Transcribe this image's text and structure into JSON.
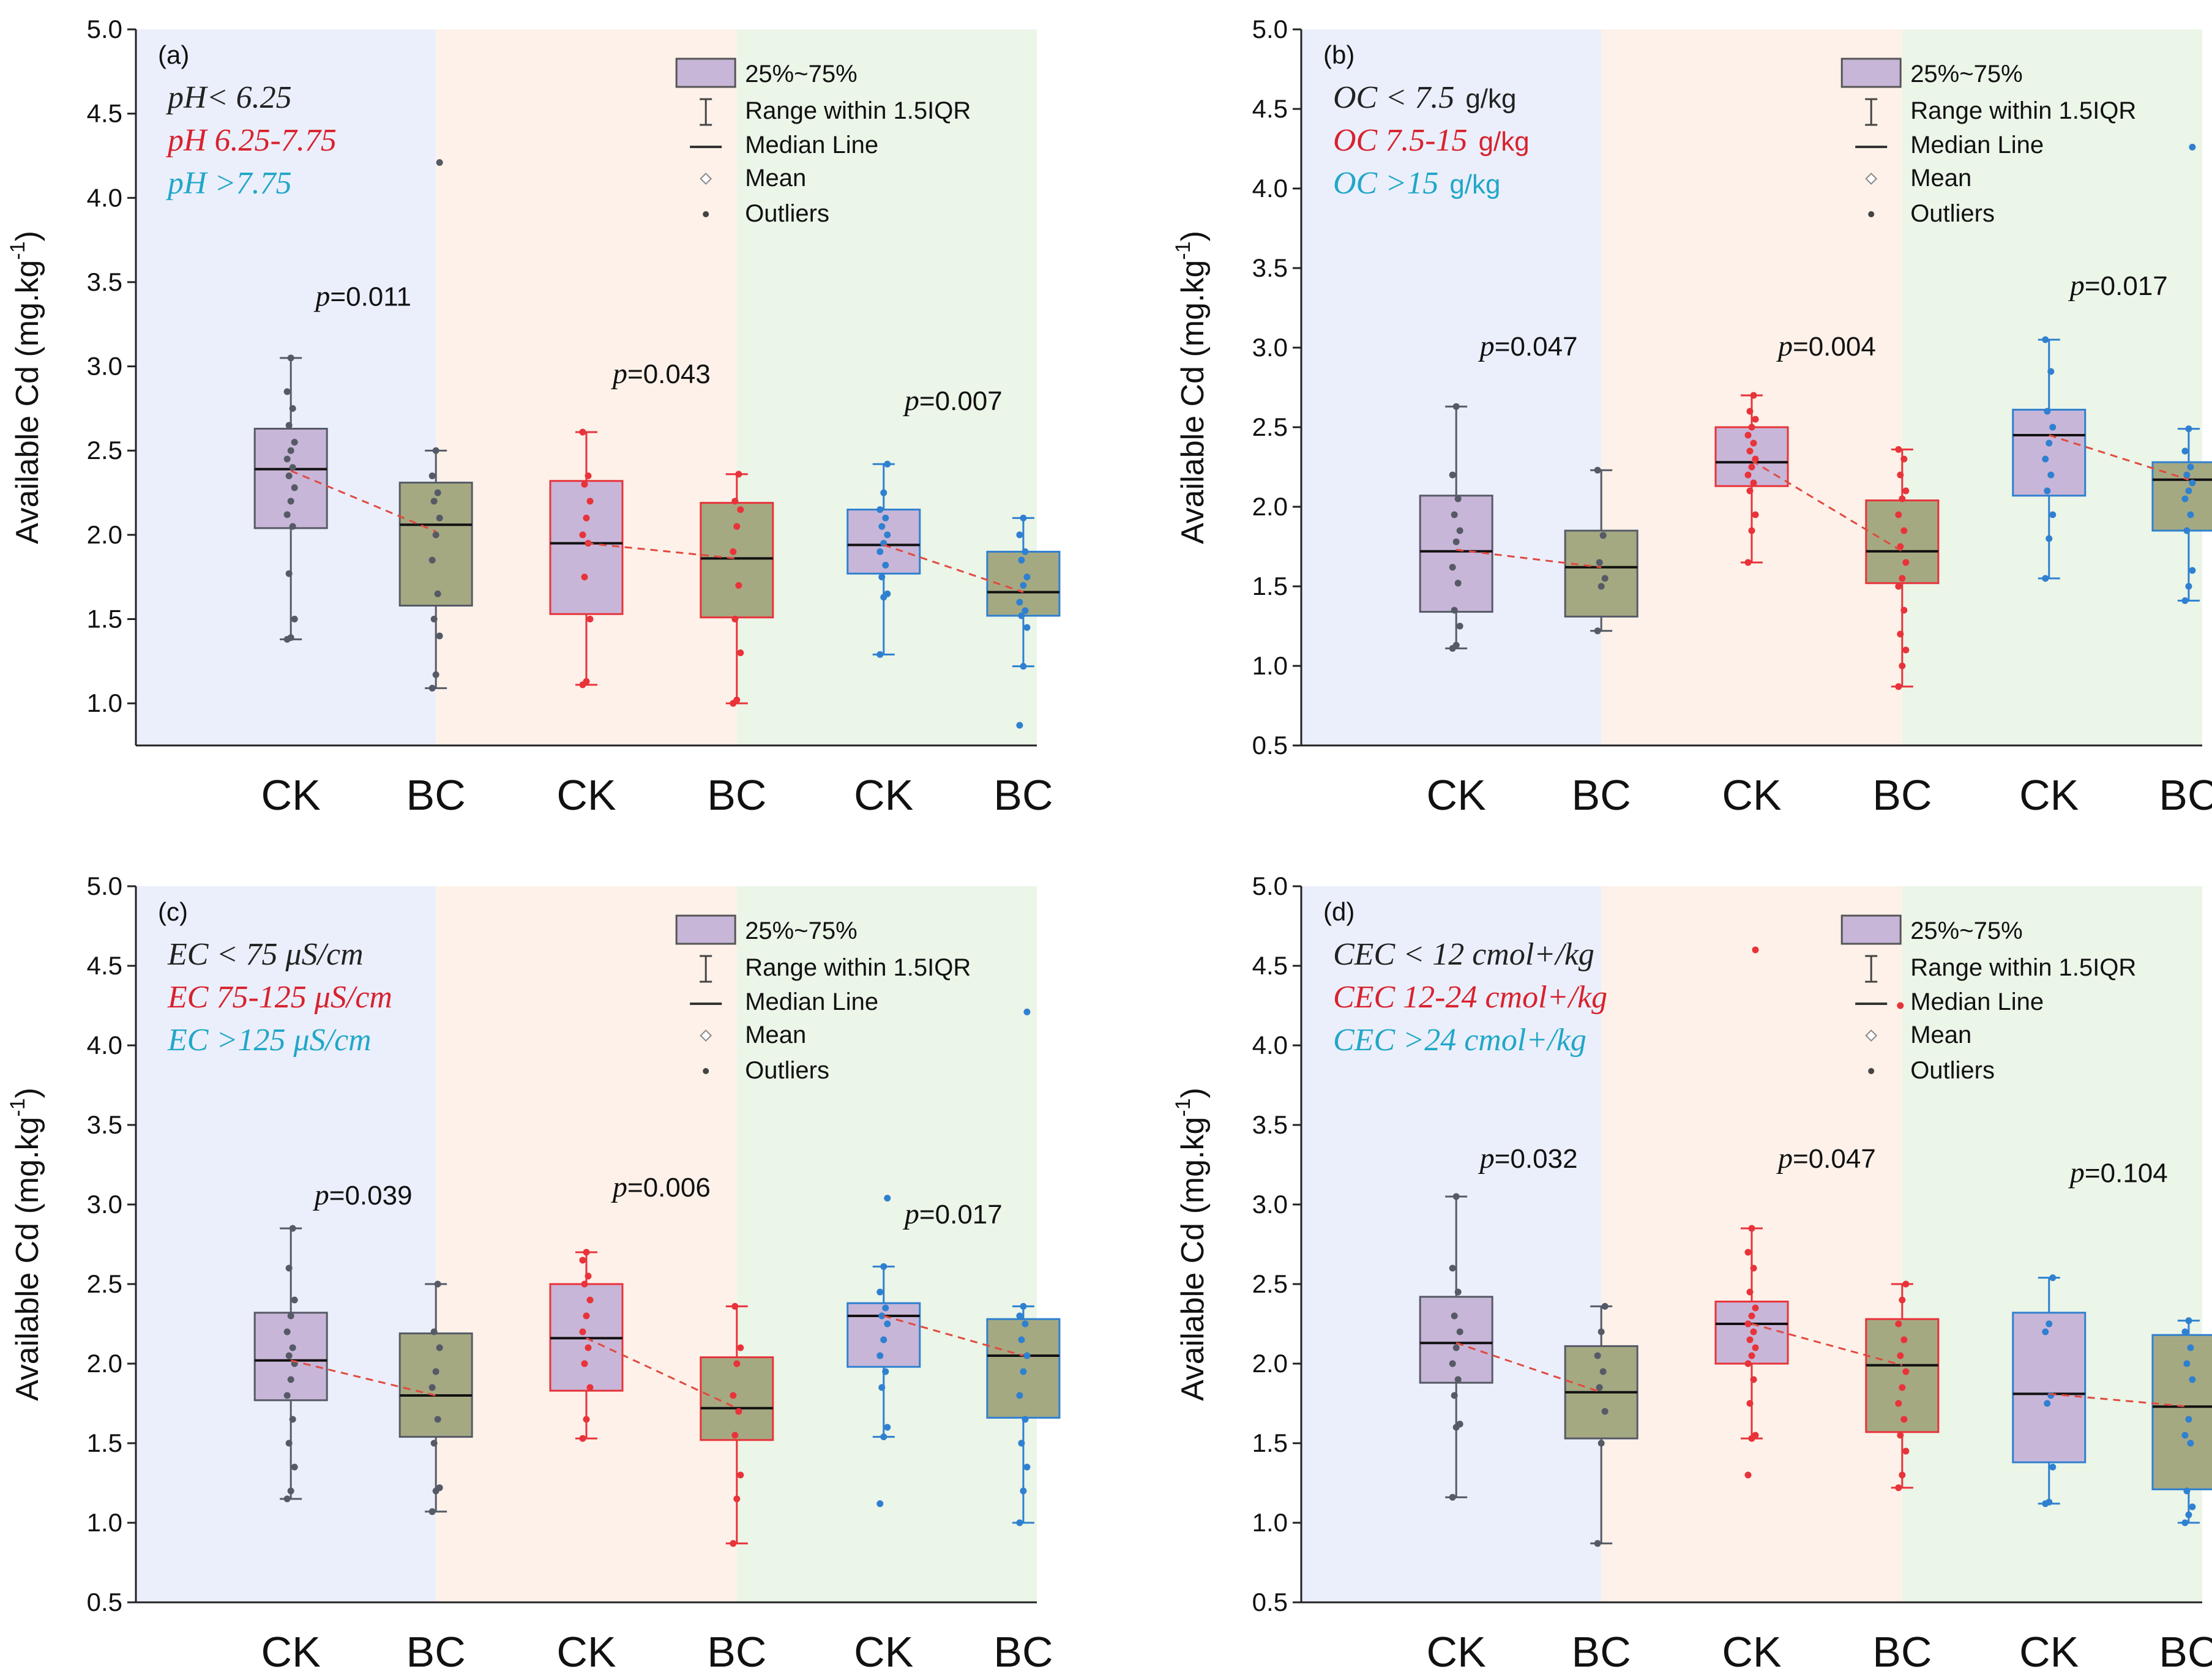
{
  "legend": {
    "box": "25%~75%",
    "range": "Range within 1.5IQR",
    "median": "Median Line",
    "mean": "Mean",
    "outliers": "Outliers"
  },
  "y_label": "Available Cd (mg.kg",
  "y_label_sup": "-1",
  "colors": {
    "group_colors": [
      "#555a66",
      "#e8333a",
      "#2f80d0"
    ],
    "group_bg": [
      "#ebeffb",
      "#fdf1e9",
      "#ebf5e8"
    ],
    "ck_fill": "#c8b6d8",
    "bc_fill": "#a5a982",
    "mean_line": "#e04a40",
    "cond_colors": [
      "#222222",
      "#d8222e",
      "#21a7c8"
    ]
  },
  "chart_data": [
    {
      "type": "box",
      "tag": "(a)",
      "ylim": [
        0.75,
        5.0
      ],
      "yticks": [
        "1.0",
        "1.5",
        "2.0",
        "2.5",
        "3.0",
        "3.5",
        "4.0",
        "4.5",
        "5.0"
      ],
      "conditions": [
        {
          "label": "pH< 6.25",
          "unit": ""
        },
        {
          "label": "pH 6.25-7.75",
          "unit": ""
        },
        {
          "label": "pH >7.75",
          "unit": ""
        }
      ],
      "groups": [
        {
          "p": "=0.011",
          "p_y": 3.36,
          "CK": {
            "q1": 2.04,
            "median": 2.39,
            "q3": 2.63,
            "wlo": 1.38,
            "whi": 3.05,
            "mean": 2.38,
            "points": [
              1.38,
              1.39,
              1.5,
              1.77,
              2.05,
              2.12,
              2.2,
              2.28,
              2.35,
              2.4,
              2.45,
              2.5,
              2.55,
              2.65,
              2.75,
              2.85,
              3.05
            ]
          },
          "BC": {
            "q1": 1.58,
            "median": 2.06,
            "q3": 2.31,
            "wlo": 1.09,
            "whi": 2.5,
            "mean": 2.02,
            "points": [
              1.09,
              1.17,
              1.4,
              1.5,
              1.65,
              1.85,
              2.0,
              2.1,
              2.2,
              2.25,
              2.35,
              2.5,
              4.21
            ]
          }
        },
        {
          "p": "=0.043",
          "p_y": 2.9,
          "CK": {
            "q1": 1.53,
            "median": 1.95,
            "q3": 2.32,
            "wlo": 1.11,
            "whi": 2.61,
            "mean": 1.95,
            "points": [
              1.11,
              1.13,
              1.5,
              1.75,
              1.95,
              2.0,
              2.1,
              2.2,
              2.3,
              2.35,
              2.61
            ]
          },
          "BC": {
            "q1": 1.51,
            "median": 1.86,
            "q3": 2.19,
            "wlo": 1.0,
            "whi": 2.36,
            "mean": 1.86,
            "points": [
              1.0,
              1.02,
              1.3,
              1.5,
              1.7,
              1.9,
              2.05,
              2.15,
              2.2,
              2.36
            ]
          }
        },
        {
          "p": "=0.007",
          "p_y": 2.74,
          "CK": {
            "q1": 1.77,
            "median": 1.94,
            "q3": 2.15,
            "wlo": 1.29,
            "whi": 2.42,
            "mean": 1.94,
            "points": [
              1.29,
              1.63,
              1.65,
              1.75,
              1.82,
              1.9,
              1.95,
              2.0,
              2.05,
              2.1,
              2.15,
              2.25,
              2.42
            ]
          },
          "BC": {
            "q1": 1.52,
            "median": 1.66,
            "q3": 1.9,
            "wlo": 1.22,
            "whi": 2.1,
            "mean": 1.66,
            "points": [
              0.87,
              1.22,
              1.45,
              1.52,
              1.55,
              1.6,
              1.7,
              1.75,
              1.85,
              1.9,
              2.0,
              2.1
            ]
          }
        }
      ]
    },
    {
      "type": "box",
      "tag": "(b)",
      "ylim": [
        0.5,
        5.0
      ],
      "yticks": [
        "0.5",
        "1.0",
        "1.5",
        "2.0",
        "2.5",
        "3.0",
        "3.5",
        "4.0",
        "4.5",
        "5.0"
      ],
      "conditions": [
        {
          "label": "OC < 7.5",
          "unit": "g/kg"
        },
        {
          "label": "OC 7.5-15",
          "unit": "g/kg"
        },
        {
          "label": "OC >15",
          "unit": "g/kg"
        }
      ],
      "groups": [
        {
          "p": "=0.047",
          "p_y": 2.95,
          "CK": {
            "q1": 1.34,
            "median": 1.72,
            "q3": 2.07,
            "wlo": 1.11,
            "whi": 2.63,
            "mean": 1.73,
            "points": [
              1.11,
              1.13,
              1.25,
              1.35,
              1.52,
              1.62,
              1.78,
              1.85,
              1.95,
              2.05,
              2.2,
              2.63
            ]
          },
          "BC": {
            "q1": 1.31,
            "median": 1.62,
            "q3": 1.85,
            "wlo": 1.22,
            "whi": 2.23,
            "mean": 1.62,
            "points": [
              1.22,
              1.5,
              1.55,
              1.65,
              1.82,
              2.23
            ]
          }
        },
        {
          "p": "=0.004",
          "p_y": 2.95,
          "CK": {
            "q1": 2.13,
            "median": 2.28,
            "q3": 2.5,
            "wlo": 1.65,
            "whi": 2.7,
            "mean": 2.29,
            "points": [
              1.65,
              1.85,
              1.95,
              2.1,
              2.15,
              2.2,
              2.25,
              2.3,
              2.35,
              2.4,
              2.45,
              2.5,
              2.55,
              2.6,
              2.7
            ]
          },
          "BC": {
            "q1": 1.52,
            "median": 1.72,
            "q3": 2.04,
            "wlo": 0.87,
            "whi": 2.36,
            "mean": 1.72,
            "points": [
              0.87,
              1.0,
              1.1,
              1.2,
              1.35,
              1.5,
              1.55,
              1.65,
              1.75,
              1.85,
              1.95,
              2.05,
              2.1,
              2.2,
              2.3,
              2.36
            ]
          }
        },
        {
          "p": "=0.017",
          "p_y": 3.33,
          "CK": {
            "q1": 2.07,
            "median": 2.45,
            "q3": 2.61,
            "wlo": 1.55,
            "whi": 3.05,
            "mean": 2.45,
            "points": [
              1.55,
              1.8,
              1.95,
              2.1,
              2.2,
              2.3,
              2.4,
              2.5,
              2.6,
              2.85,
              3.05
            ]
          },
          "BC": {
            "q1": 1.85,
            "median": 2.17,
            "q3": 2.28,
            "wlo": 1.41,
            "whi": 2.49,
            "mean": 2.17,
            "points": [
              1.41,
              1.5,
              1.6,
              1.85,
              1.95,
              2.05,
              2.1,
              2.15,
              2.2,
              2.25,
              2.35,
              2.49,
              4.26
            ]
          }
        }
      ]
    },
    {
      "type": "box",
      "tag": "(c)",
      "ylim": [
        0.5,
        5.0
      ],
      "yticks": [
        "0.5",
        "1.0",
        "1.5",
        "2.0",
        "2.5",
        "3.0",
        "3.5",
        "4.0",
        "4.5",
        "5.0"
      ],
      "conditions": [
        {
          "label": "EC < 75 μS/cm",
          "unit": ""
        },
        {
          "label": "EC 75-125 μS/cm",
          "unit": ""
        },
        {
          "label": "EC >125 μS/cm",
          "unit": ""
        }
      ],
      "groups": [
        {
          "p": "=0.039",
          "p_y": 3.0,
          "CK": {
            "q1": 1.77,
            "median": 2.02,
            "q3": 2.32,
            "wlo": 1.15,
            "whi": 2.85,
            "mean": 2.02,
            "points": [
              1.15,
              1.2,
              1.35,
              1.5,
              1.65,
              1.8,
              1.9,
              2.0,
              2.05,
              2.1,
              2.2,
              2.3,
              2.4,
              2.6,
              2.85
            ]
          },
          "BC": {
            "q1": 1.54,
            "median": 1.8,
            "q3": 2.19,
            "wlo": 1.07,
            "whi": 2.5,
            "mean": 1.8,
            "points": [
              1.07,
              1.2,
              1.22,
              1.5,
              1.65,
              1.85,
              1.95,
              2.1,
              2.2,
              2.5
            ]
          }
        },
        {
          "p": "=0.006",
          "p_y": 3.05,
          "CK": {
            "q1": 1.83,
            "median": 2.16,
            "q3": 2.5,
            "wlo": 1.53,
            "whi": 2.7,
            "mean": 2.16,
            "points": [
              1.53,
              1.65,
              1.85,
              2.0,
              2.1,
              2.2,
              2.3,
              2.4,
              2.5,
              2.55,
              2.65,
              2.7
            ]
          },
          "BC": {
            "q1": 1.52,
            "median": 1.72,
            "q3": 2.04,
            "wlo": 0.87,
            "whi": 2.36,
            "mean": 1.72,
            "points": [
              0.87,
              1.15,
              1.3,
              1.55,
              1.7,
              1.8,
              2.0,
              2.1,
              2.36
            ]
          }
        },
        {
          "p": "=0.017",
          "p_y": 2.88,
          "CK": {
            "q1": 1.98,
            "median": 2.3,
            "q3": 2.38,
            "wlo": 1.54,
            "whi": 2.61,
            "mean": 2.3,
            "points": [
              1.12,
              1.54,
              1.6,
              1.85,
              1.95,
              2.05,
              2.15,
              2.25,
              2.3,
              2.35,
              2.45,
              2.61,
              3.04
            ]
          },
          "BC": {
            "q1": 1.66,
            "median": 2.05,
            "q3": 2.28,
            "wlo": 1.0,
            "whi": 2.36,
            "mean": 2.05,
            "points": [
              1.0,
              1.2,
              1.35,
              1.5,
              1.65,
              1.8,
              1.95,
              2.05,
              2.15,
              2.25,
              2.3,
              2.36,
              4.21
            ]
          }
        }
      ]
    },
    {
      "type": "box",
      "tag": "(d)",
      "ylim": [
        0.5,
        5.0
      ],
      "yticks": [
        "0.5",
        "1.0",
        "1.5",
        "2.0",
        "2.5",
        "3.0",
        "3.5",
        "4.0",
        "4.5",
        "5.0"
      ],
      "conditions": [
        {
          "label": "CEC < 12 cmol+/kg",
          "unit": ""
        },
        {
          "label": "CEC 12-24 cmol+/kg",
          "unit": ""
        },
        {
          "label": "CEC >24 cmol+/kg",
          "unit": ""
        }
      ],
      "groups": [
        {
          "p": "=0.032",
          "p_y": 3.23,
          "CK": {
            "q1": 1.88,
            "median": 2.13,
            "q3": 2.42,
            "wlo": 1.16,
            "whi": 3.05,
            "mean": 2.13,
            "points": [
              1.16,
              1.6,
              1.62,
              1.8,
              1.9,
              2.0,
              2.1,
              2.2,
              2.3,
              2.45,
              2.6,
              3.05
            ]
          },
          "BC": {
            "q1": 1.53,
            "median": 1.82,
            "q3": 2.11,
            "wlo": 0.87,
            "whi": 2.36,
            "mean": 1.82,
            "points": [
              0.87,
              1.5,
              1.7,
              1.85,
              1.95,
              2.05,
              2.2,
              2.36
            ]
          }
        },
        {
          "p": "=0.047",
          "p_y": 3.23,
          "CK": {
            "q1": 2.0,
            "median": 2.25,
            "q3": 2.39,
            "wlo": 1.53,
            "whi": 2.85,
            "mean": 2.25,
            "points": [
              1.3,
              1.53,
              1.55,
              1.75,
              1.9,
              2.0,
              2.05,
              2.1,
              2.15,
              2.2,
              2.25,
              2.3,
              2.35,
              2.45,
              2.6,
              2.7,
              2.85,
              4.6
            ]
          },
          "BC": {
            "q1": 1.57,
            "median": 1.99,
            "q3": 2.28,
            "wlo": 1.22,
            "whi": 2.5,
            "mean": 1.99,
            "points": [
              1.22,
              1.3,
              1.45,
              1.55,
              1.65,
              1.75,
              1.85,
              1.95,
              2.05,
              2.15,
              2.25,
              2.4,
              2.5,
              4.25
            ]
          }
        },
        {
          "p": "=0.104",
          "p_y": 3.14,
          "CK": {
            "q1": 1.38,
            "median": 1.81,
            "q3": 2.32,
            "wlo": 1.12,
            "whi": 2.54,
            "mean": 1.81,
            "points": [
              1.12,
              1.13,
              1.35,
              1.75,
              1.8,
              2.2,
              2.25,
              2.54
            ]
          },
          "BC": {
            "q1": 1.21,
            "median": 1.73,
            "q3": 2.18,
            "wlo": 1.0,
            "whi": 2.27,
            "mean": 1.73,
            "points": [
              1.0,
              1.05,
              1.1,
              1.2,
              1.5,
              1.55,
              1.65,
              1.9,
              2.0,
              2.1,
              2.2,
              2.27
            ]
          }
        }
      ]
    }
  ],
  "categories": [
    "CK",
    "BC"
  ],
  "p_symbol": "p"
}
